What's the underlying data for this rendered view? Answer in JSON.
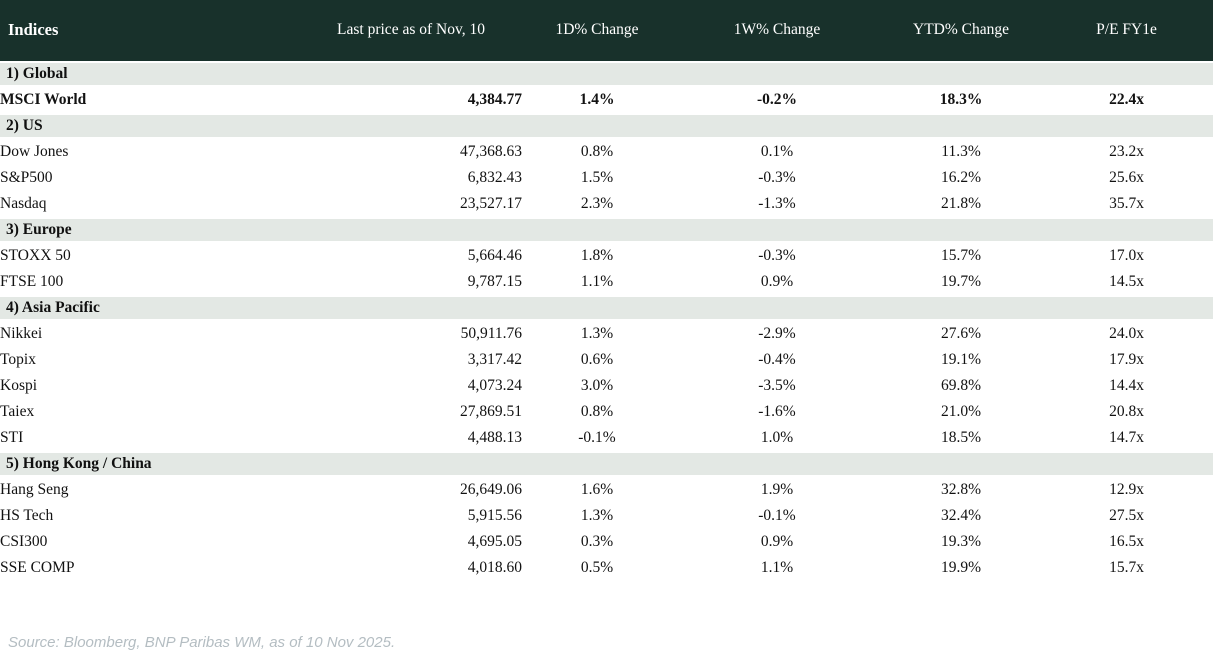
{
  "title": "Indices",
  "colors": {
    "header_bg": "#18312b",
    "header_text": "#ffffff",
    "section_bg": "#e3e8e4",
    "positive": "#0a7d32",
    "negative": "#c2001c",
    "body_text": "#121212",
    "source_text": "#b4bdc2"
  },
  "chart_data": {
    "type": "table",
    "title": "Indices",
    "columns": [
      "Indices",
      "Last price as of Nov, 10",
      "1D% Change",
      "1W% Change",
      "YTD% Change",
      "P/E FY1e"
    ],
    "sections": [
      {
        "label": "1) Global",
        "rows": [
          {
            "name": "MSCI World",
            "last_price": "4,384.77",
            "d1": "1.4%",
            "w1": "-0.2%",
            "ytd": "18.3%",
            "pe": "22.4x",
            "bold": true
          }
        ]
      },
      {
        "label": "2) US",
        "rows": [
          {
            "name": "Dow Jones",
            "last_price": "47,368.63",
            "d1": "0.8%",
            "w1": "0.1%",
            "ytd": "11.3%",
            "pe": "23.2x",
            "bold": false
          },
          {
            "name": "S&P500",
            "last_price": "6,832.43",
            "d1": "1.5%",
            "w1": "-0.3%",
            "ytd": "16.2%",
            "pe": "25.6x",
            "bold": false
          },
          {
            "name": "Nasdaq",
            "last_price": "23,527.17",
            "d1": "2.3%",
            "w1": "-1.3%",
            "ytd": "21.8%",
            "pe": "35.7x",
            "bold": false
          }
        ]
      },
      {
        "label": "3) Europe",
        "rows": [
          {
            "name": "STOXX 50",
            "last_price": "5,664.46",
            "d1": "1.8%",
            "w1": "-0.3%",
            "ytd": "15.7%",
            "pe": "17.0x",
            "bold": false
          },
          {
            "name": "FTSE 100",
            "last_price": "9,787.15",
            "d1": "1.1%",
            "w1": "0.9%",
            "ytd": "19.7%",
            "pe": "14.5x",
            "bold": false
          }
        ]
      },
      {
        "label": "4) Asia Pacific",
        "rows": [
          {
            "name": "Nikkei",
            "last_price": "50,911.76",
            "d1": "1.3%",
            "w1": "-2.9%",
            "ytd": "27.6%",
            "pe": "24.0x",
            "bold": false
          },
          {
            "name": "Topix",
            "last_price": "3,317.42",
            "d1": "0.6%",
            "w1": "-0.4%",
            "ytd": "19.1%",
            "pe": "17.9x",
            "bold": false
          },
          {
            "name": "Kospi",
            "last_price": "4,073.24",
            "d1": "3.0%",
            "w1": "-3.5%",
            "ytd": "69.8%",
            "pe": "14.4x",
            "bold": false
          },
          {
            "name": "Taiex",
            "last_price": "27,869.51",
            "d1": "0.8%",
            "w1": "-1.6%",
            "ytd": "21.0%",
            "pe": "20.8x",
            "bold": false
          },
          {
            "name": "STI",
            "last_price": "4,488.13",
            "d1": "-0.1%",
            "w1": "1.0%",
            "ytd": "18.5%",
            "pe": "14.7x",
            "bold": false
          }
        ]
      },
      {
        "label": "5) Hong Kong / China",
        "rows": [
          {
            "name": "Hang Seng",
            "last_price": "26,649.06",
            "d1": "1.6%",
            "w1": "1.9%",
            "ytd": "32.8%",
            "pe": "12.9x",
            "bold": false
          },
          {
            "name": "HS Tech",
            "last_price": "5,915.56",
            "d1": "1.3%",
            "w1": "-0.1%",
            "ytd": "32.4%",
            "pe": "27.5x",
            "bold": false
          },
          {
            "name": "CSI300",
            "last_price": "4,695.05",
            "d1": "0.3%",
            "w1": "0.9%",
            "ytd": "19.3%",
            "pe": "16.5x",
            "bold": false
          },
          {
            "name": "SSE COMP",
            "last_price": "4,018.60",
            "d1": "0.5%",
            "w1": "1.1%",
            "ytd": "19.9%",
            "pe": "15.7x",
            "bold": false
          }
        ]
      }
    ]
  },
  "source_note": "Source: Bloomberg, BNP Paribas WM, as of 10 Nov 2025."
}
